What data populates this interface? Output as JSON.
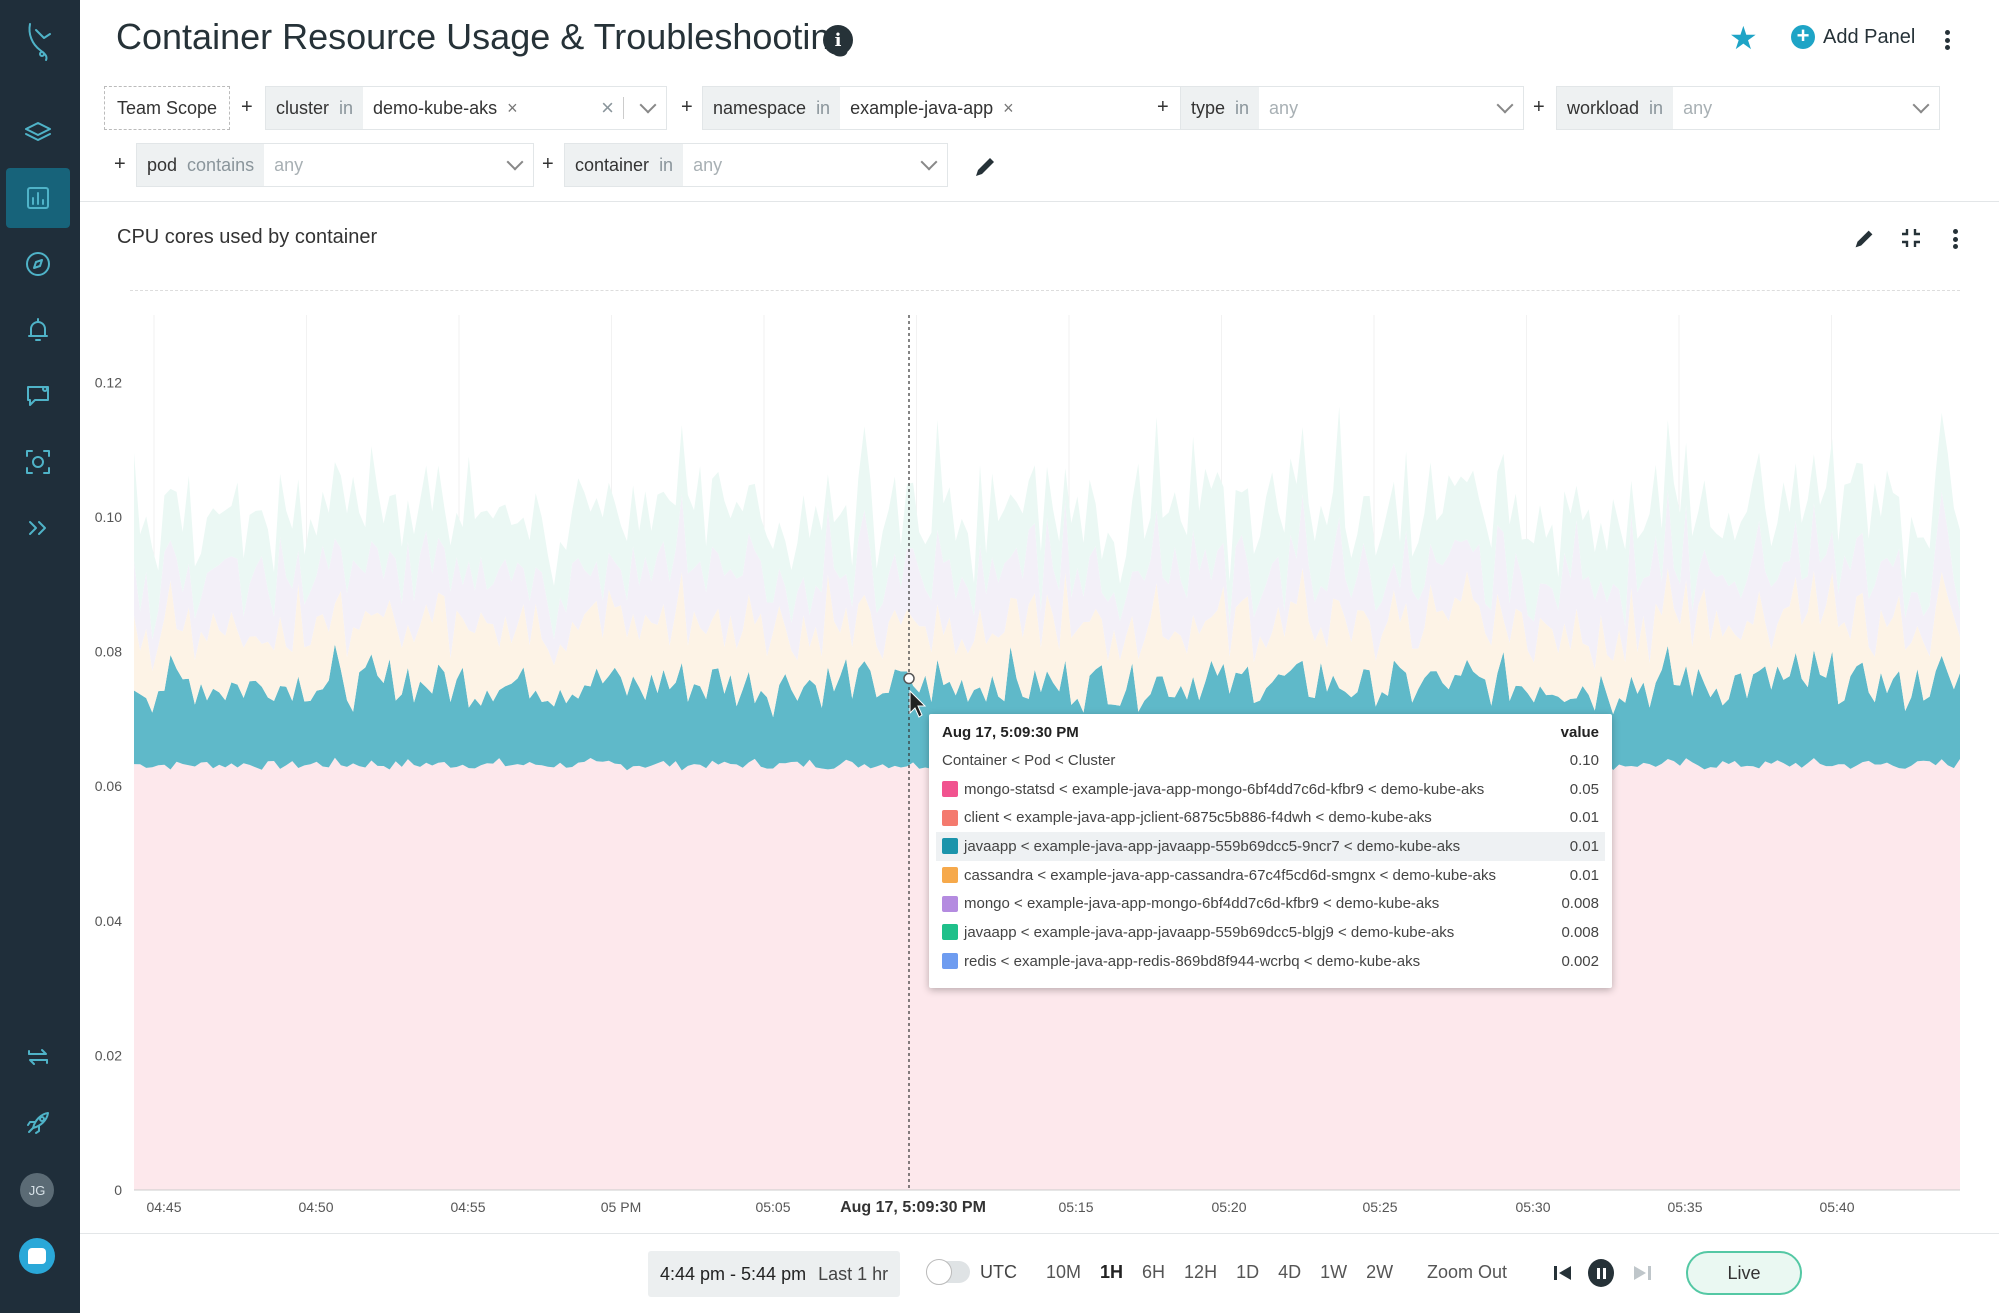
{
  "header": {
    "title": "Container Resource Usage & Troubleshooting",
    "add_panel_label": "Add Panel"
  },
  "sidebar": {
    "avatar_initials": "JG",
    "icons": [
      "logo-icon",
      "layers-icon",
      "dashboard-icon",
      "compass-icon",
      "bell-icon",
      "chat-icon",
      "capture-icon",
      "expand-icon",
      "refresh-icon",
      "rocket-icon"
    ]
  },
  "filters": {
    "team_scope": "Team Scope",
    "plus": "+",
    "cluster": {
      "key": "cluster",
      "op": "in",
      "value": "demo-kube-aks"
    },
    "namespace": {
      "key": "namespace",
      "op": "in",
      "value": "example-java-app"
    },
    "type": {
      "key": "type",
      "op": "in",
      "value": "any"
    },
    "workload": {
      "key": "workload",
      "op": "in",
      "value": "any"
    },
    "pod": {
      "key": "pod",
      "op": "contains",
      "value": "any"
    },
    "container": {
      "key": "container",
      "op": "in",
      "value": "any"
    }
  },
  "panel": {
    "title": "CPU cores used by container"
  },
  "tooltip": {
    "time": "Aug 17, 5:09:30 PM",
    "value_header": "value",
    "group_label": "Container < Pod < Cluster",
    "group_value": "0.10",
    "rows": [
      {
        "label": "mongo-statsd < example-java-app-mongo-6bf4dd7c6d-kfbr9 < demo-kube-aks",
        "value": "0.05",
        "color": "#f1538f"
      },
      {
        "label": "client < example-java-app-jclient-6875c5b886-f4dwh < demo-kube-aks",
        "value": "0.01",
        "color": "#f47a6e"
      },
      {
        "label": "javaapp < example-java-app-javaapp-559b69dcc5-9ncr7 < demo-kube-aks",
        "value": "0.01",
        "color": "#1b94ab"
      },
      {
        "label": "cassandra < example-java-app-cassandra-67c4f5cd6d-smgnx < demo-kube-aks",
        "value": "0.01",
        "color": "#f6a94b"
      },
      {
        "label": "mongo < example-java-app-mongo-6bf4dd7c6d-kfbr9 < demo-kube-aks",
        "value": "0.008",
        "color": "#b48be0"
      },
      {
        "label": "javaapp < example-java-app-javaapp-559b69dcc5-blgj9 < demo-kube-aks",
        "value": "0.008",
        "color": "#1fc08a"
      },
      {
        "label": "redis < example-java-app-redis-869bd8f944-wcrbq < demo-kube-aks",
        "value": "0.002",
        "color": "#6e9cf0"
      }
    ]
  },
  "chart_data": {
    "type": "area",
    "title": "CPU cores used by container",
    "y_ticks": [
      "0",
      "0.02",
      "0.04",
      "0.06",
      "0.08",
      "0.10",
      "0.12"
    ],
    "ylim": [
      0,
      0.13
    ],
    "x_ticks": [
      "04:45",
      "04:50",
      "04:55",
      "05 PM",
      "05:05",
      "Aug 17, 5:09:30 PM",
      "05:15",
      "05:20",
      "05:25",
      "05:30",
      "05:35",
      "05:40"
    ],
    "series": [
      {
        "name": "mongo-statsd < example-java-app-mongo-6bf4dd7c6d-kfbr9 < demo-kube-aks",
        "color": "#fde8ec",
        "base": 0.063
      },
      {
        "name": "javaapp < example-java-app-javaapp-559b69dcc5-9ncr7 < demo-kube-aks",
        "color": "#5fb9c9",
        "base": 0.011
      },
      {
        "name": "cassandra < example-java-app-cassandra-67c4f5cd6d-smgnx < demo-kube-aks",
        "color": "#fdf3e6",
        "base": 0.008
      },
      {
        "name": "mongo < example-java-app-mongo-6bf4dd7c6d-kfbr9 < demo-kube-aks",
        "color": "#f3f0f8",
        "base": 0.007
      },
      {
        "name": "javaapp < example-java-app-javaapp-559b69dcc5-blgj9 < demo-kube-aks",
        "color": "#ebf8f4",
        "base": 0.008
      }
    ],
    "hover_time": "Aug 17, 5:09:30 PM",
    "hover_value": 0.076
  },
  "bottom": {
    "time_value": "4:44 pm - 5:44 pm",
    "time_range": "Last 1 hr",
    "utc_label": "UTC",
    "ranges": [
      "10M",
      "1H",
      "6H",
      "12H",
      "1D",
      "4D",
      "1W",
      "2W"
    ],
    "selected_range": "1H",
    "zoom_out": "Zoom Out",
    "live": "Live"
  }
}
